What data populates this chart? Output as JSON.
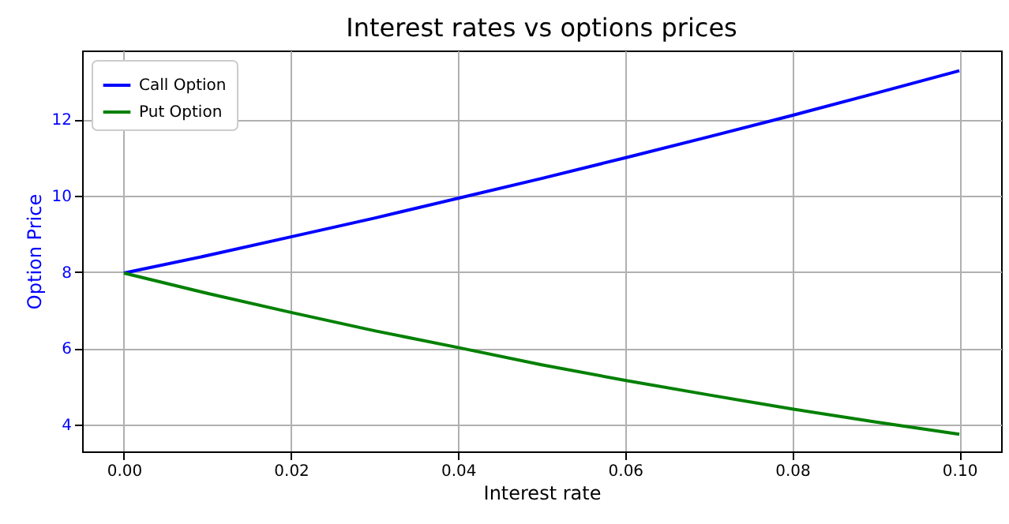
{
  "chart_data": {
    "type": "line",
    "title": "Interest rates vs options prices",
    "xlabel": "Interest rate",
    "ylabel": "Option Price",
    "x": [
      0,
      0.01,
      0.02,
      0.03,
      0.04,
      0.05,
      0.06,
      0.07,
      0.08,
      0.09,
      0.1
    ],
    "series": [
      {
        "name": "Call Option",
        "color": "#0000ff",
        "values": [
          7.97,
          8.43,
          8.92,
          9.41,
          9.93,
          10.45,
          10.99,
          11.54,
          12.1,
          12.68,
          13.27
        ]
      },
      {
        "name": "Put Option",
        "color": "#008000",
        "values": [
          7.97,
          7.44,
          6.94,
          6.46,
          6.02,
          5.57,
          5.16,
          4.78,
          4.41,
          4.07,
          3.75
        ]
      }
    ],
    "xlim": [
      -0.005,
      0.105
    ],
    "ylim": [
      3.3,
      13.8
    ],
    "xticks": [
      {
        "value": 0,
        "label": "0.00"
      },
      {
        "value": 0.02,
        "label": "0.02"
      },
      {
        "value": 0.04,
        "label": "0.04"
      },
      {
        "value": 0.06,
        "label": "0.06"
      },
      {
        "value": 0.08,
        "label": "0.08"
      },
      {
        "value": 0.1,
        "label": "0.10"
      }
    ],
    "yticks": [
      4,
      6,
      8,
      10,
      12
    ],
    "grid": true,
    "legend": "top left",
    "marker": "none",
    "line_style": "solid"
  }
}
